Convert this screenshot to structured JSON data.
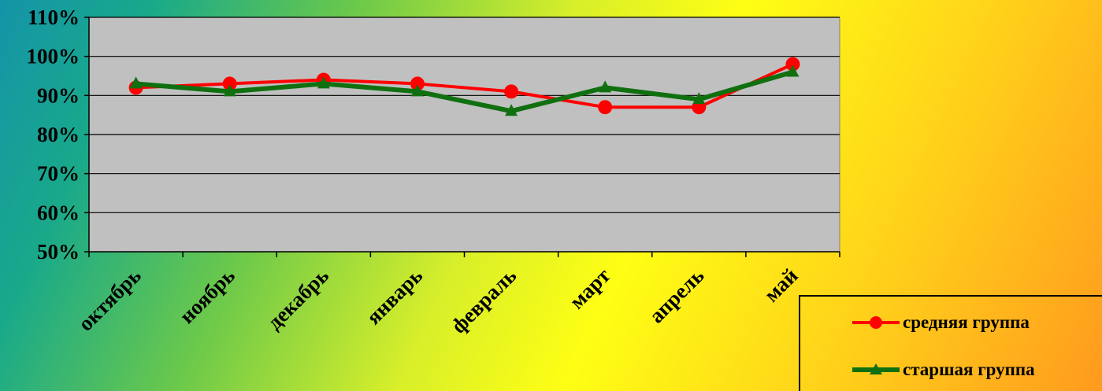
{
  "chart_data": {
    "type": "line",
    "categories": [
      "октябрь",
      "ноябрь",
      "декабрь",
      "январь",
      "февраль",
      "март",
      "апрель",
      "май"
    ],
    "series": [
      {
        "name": "средняя группа",
        "values": [
          92,
          93,
          94,
          93,
          91,
          87,
          87,
          98
        ],
        "color": "#ff0000",
        "marker": "circle"
      },
      {
        "name": "старшая группа",
        "values": [
          93,
          91,
          93,
          91,
          86,
          92,
          89,
          96
        ],
        "color": "#107010",
        "marker": "triangle"
      }
    ],
    "yticks": [
      "50%",
      "60%",
      "70%",
      "80%",
      "90%",
      "100%",
      "110%"
    ],
    "ylim": [
      50,
      110
    ],
    "ystep": 10,
    "grid": true,
    "plot_background": "#c0c0c0",
    "legend_position": "bottom-right"
  }
}
